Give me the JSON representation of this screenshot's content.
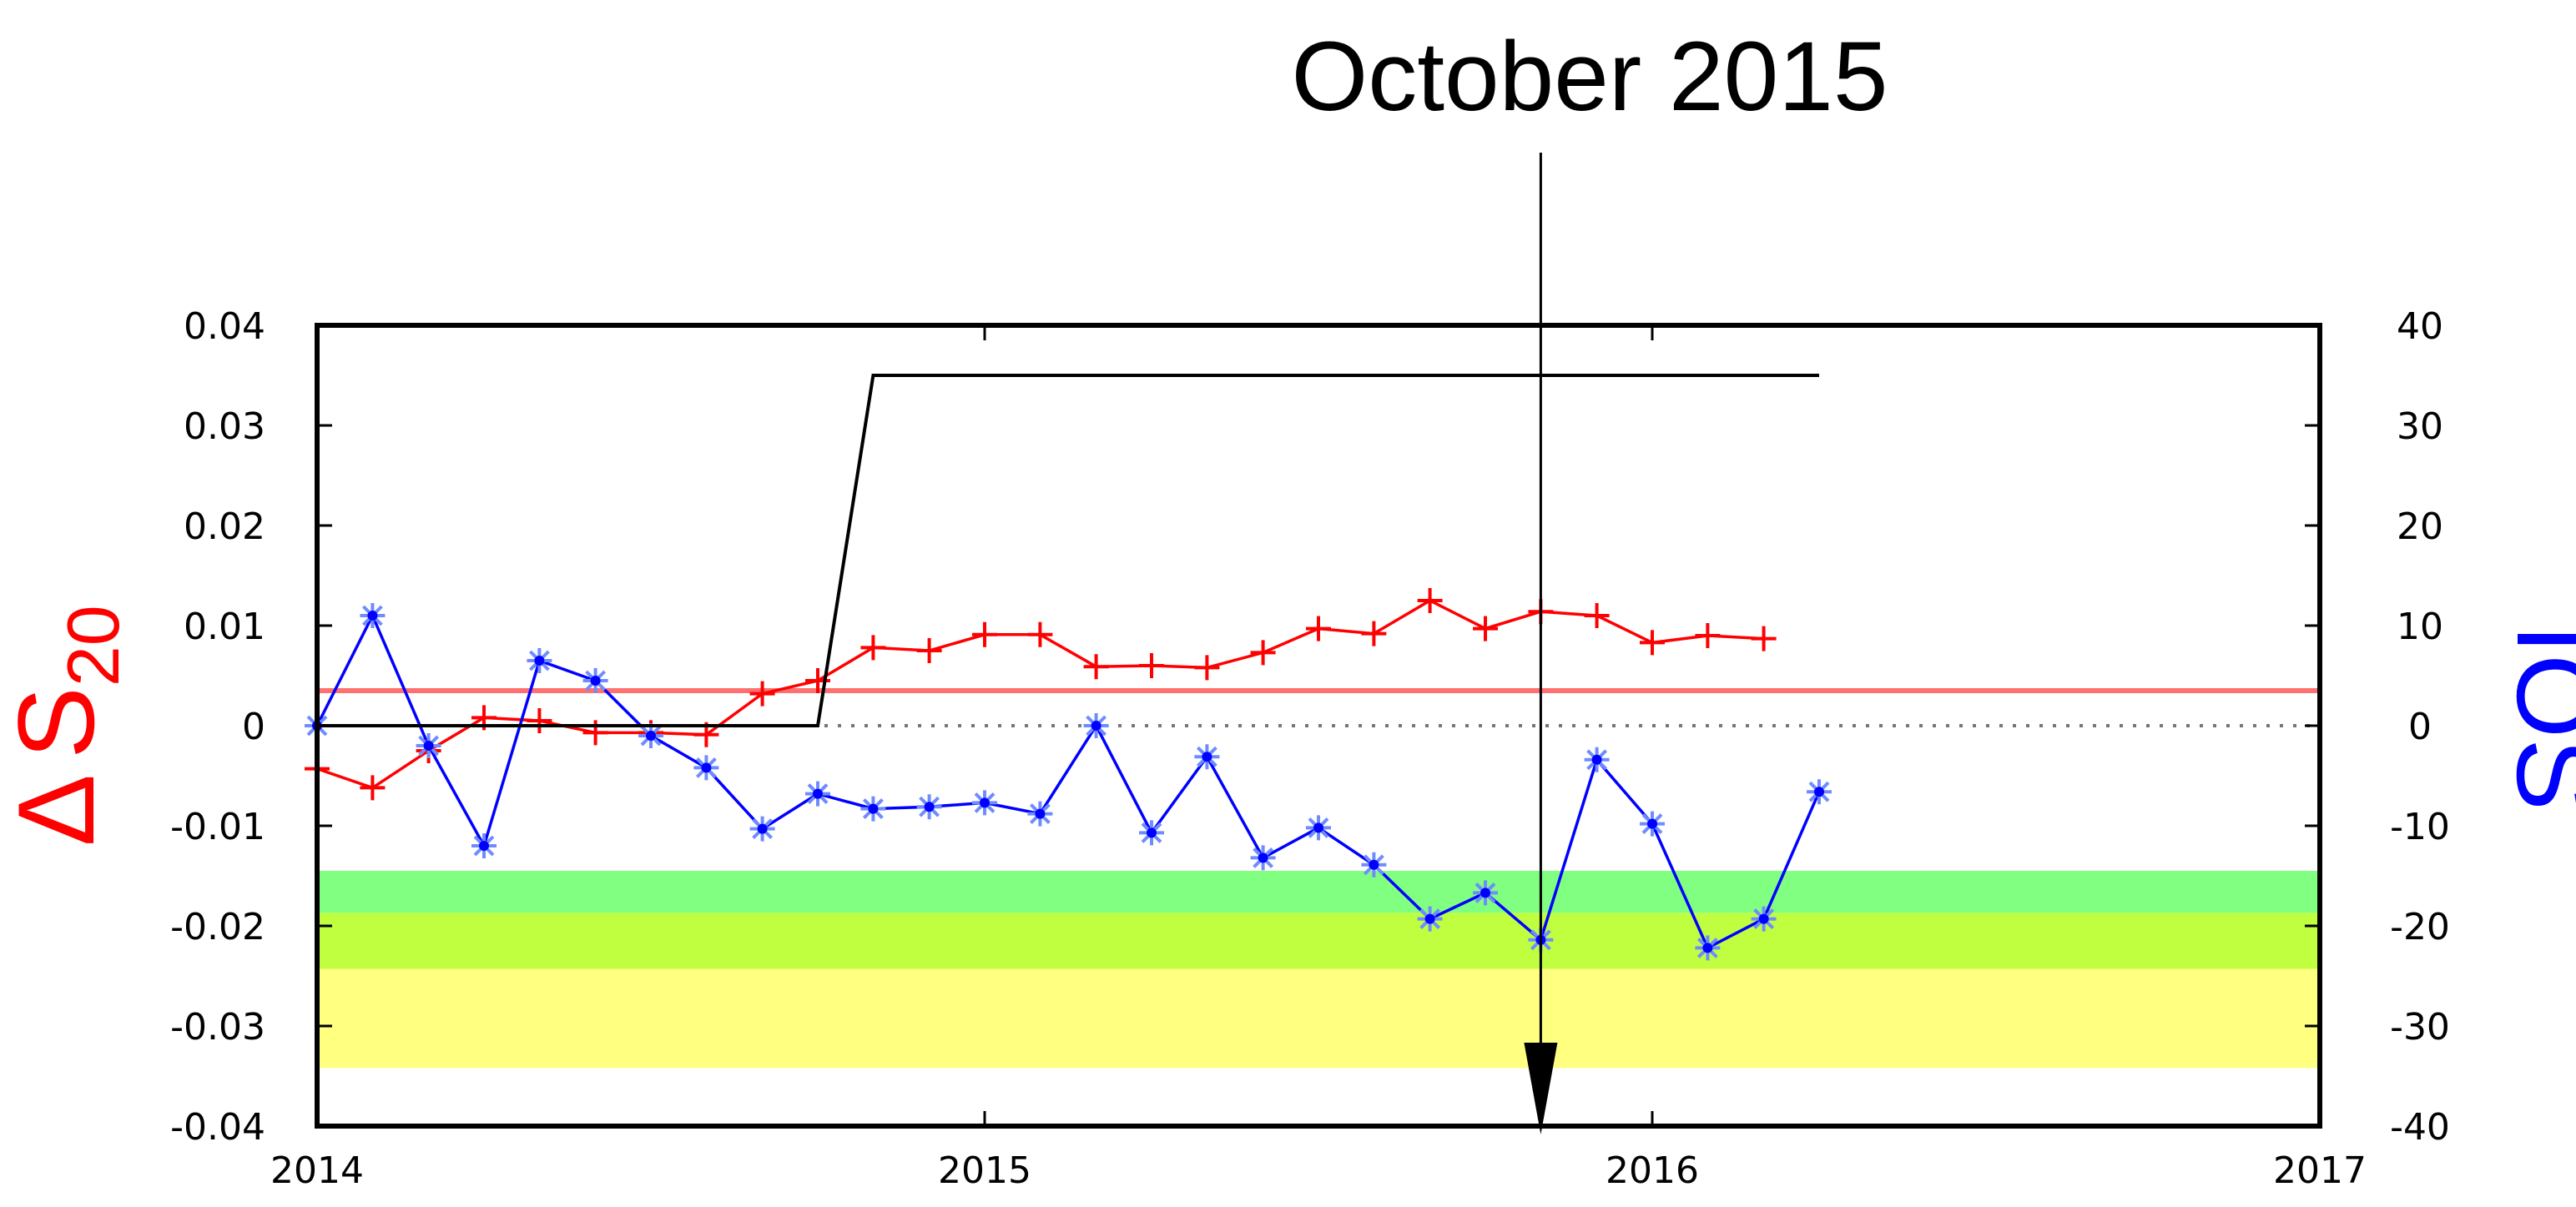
{
  "chart_data": {
    "type": "line",
    "title": "",
    "annotation": "October 2015",
    "annotation_x": 2015.833,
    "xlim": [
      2014,
      2017
    ],
    "x_ticks": [
      "2014",
      "2015",
      "2016",
      "2017"
    ],
    "ylim_left": [
      -0.04,
      0.04
    ],
    "ylim_right": [
      -40,
      40
    ],
    "y_ticks_left": [
      "0.04",
      "0.03",
      "0.02",
      "0.01",
      "0",
      "-0.01",
      "-0.02",
      "-0.03",
      "-0.04"
    ],
    "y_ticks_right": [
      "40",
      "30",
      "20",
      "10",
      "0",
      "-10",
      "-20",
      "-30",
      "-40"
    ],
    "ylabel_left": {
      "prefix": "Δ",
      "main": "S",
      "sub": "20"
    },
    "ylabel_right": "IOS",
    "zero_line": "dotted",
    "bands": [
      {
        "y1": -0.0145,
        "y2": -0.0187,
        "color": "#80ff80"
      },
      {
        "y1": -0.0187,
        "y2": -0.0243,
        "color": "#c0ff40"
      },
      {
        "y1": -0.0243,
        "y2": -0.0342,
        "color": "#ffff80"
      }
    ],
    "reference_line": {
      "y": 0.0035,
      "color": "#ff7070"
    },
    "series": [
      {
        "axis": "left",
        "color": "#ff0000",
        "marker": "plus",
        "x": [
          2014.0,
          2014.083,
          2014.167,
          2014.25,
          2014.333,
          2014.417,
          2014.5,
          2014.583,
          2014.667,
          2014.75,
          2014.833,
          2014.917,
          2015.0,
          2015.083,
          2015.167,
          2015.25,
          2015.333,
          2015.417,
          2015.5,
          2015.583,
          2015.667,
          2015.75,
          2015.833,
          2015.917,
          2016.0,
          2016.083,
          2016.167
        ],
        "y": [
          -0.0043,
          -0.0062,
          -0.0025,
          0.0008,
          0.0005,
          -0.0007,
          -0.0007,
          -0.0009,
          0.0032,
          0.0045,
          0.0078,
          0.0075,
          0.0091,
          0.0091,
          0.0059,
          0.006,
          0.0058,
          0.0073,
          0.0097,
          0.0092,
          0.0125,
          0.0097,
          0.0114,
          0.011,
          0.0083,
          0.009,
          0.0087
        ]
      },
      {
        "axis": "right",
        "color": "#0000ff",
        "marker": "star",
        "x": [
          2014.0,
          2014.083,
          2014.167,
          2014.25,
          2014.333,
          2014.417,
          2014.5,
          2014.583,
          2014.667,
          2014.75,
          2014.833,
          2014.917,
          2015.0,
          2015.083,
          2015.167,
          2015.25,
          2015.333,
          2015.417,
          2015.5,
          2015.583,
          2015.667,
          2015.75,
          2015.833,
          2015.917,
          2016.0,
          2016.083,
          2016.167,
          2016.25
        ],
        "y": [
          0,
          11,
          -2,
          -12,
          6.5,
          4.5,
          -1,
          -4.2,
          -10.3,
          -6.8,
          -8.3,
          -8.1,
          -7.7,
          -8.8,
          0,
          -10.7,
          -3.1,
          -13.2,
          -10.2,
          -13.9,
          -19.3,
          -16.7,
          -21.4,
          -3.4,
          -9.8,
          -22.2,
          -19.3,
          -6.6
        ]
      },
      {
        "axis": "right",
        "color": "#000000",
        "marker": "none",
        "x": [
          2014.0,
          2014.75,
          2014.833,
          2016.25
        ],
        "y": [
          0,
          0,
          35,
          35
        ]
      }
    ]
  }
}
